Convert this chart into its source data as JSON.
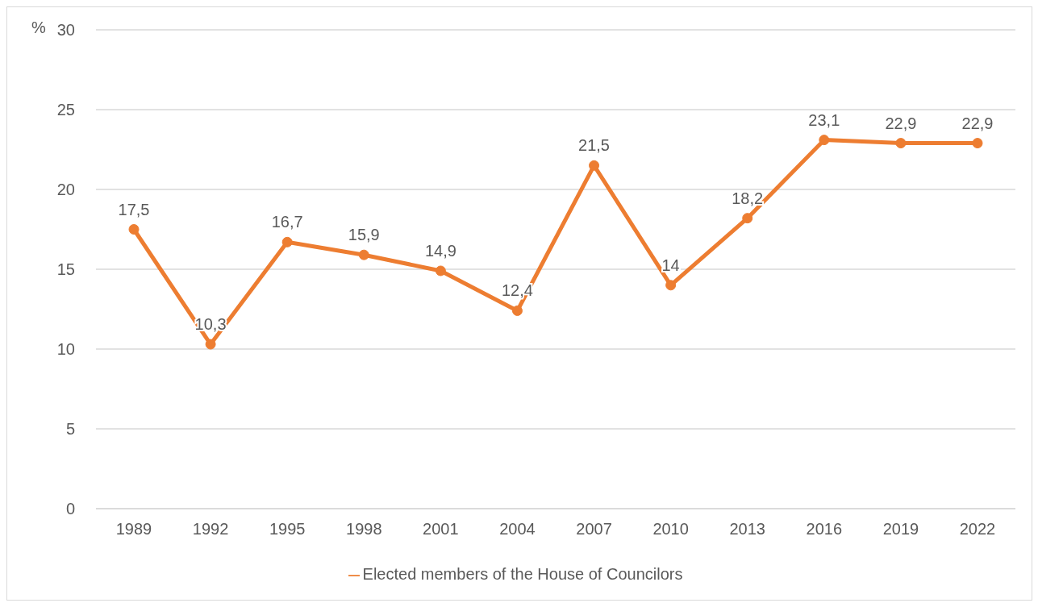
{
  "chart_data": {
    "type": "line",
    "ylabel": "%",
    "categories": [
      "1989",
      "1992",
      "1995",
      "1998",
      "2001",
      "2004",
      "2007",
      "2010",
      "2013",
      "2016",
      "2019",
      "2022"
    ],
    "series": [
      {
        "name": "Elected members of the House of Councilors",
        "color": "#ed7d31",
        "values": [
          17.5,
          10.3,
          16.7,
          15.9,
          14.9,
          12.4,
          21.5,
          14,
          18.2,
          23.1,
          22.9,
          22.9
        ],
        "value_labels": [
          "17,5",
          "10,3",
          "16,7",
          "15,9",
          "14,9",
          "12,4",
          "21,5",
          "14",
          "18,2",
          "23,1",
          "22,9",
          "22,9"
        ]
      }
    ],
    "ylim": [
      0,
      30
    ],
    "yticks": [
      0,
      5,
      10,
      15,
      20,
      25,
      30
    ],
    "grid": "y",
    "legend": "bottom",
    "marker": "circle",
    "line_style": "solid"
  }
}
